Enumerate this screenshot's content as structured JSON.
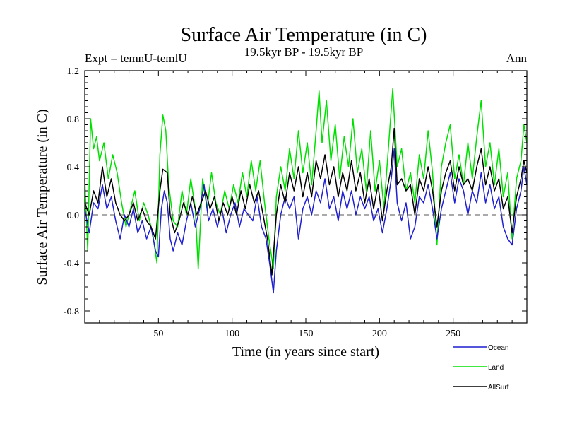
{
  "chart_data": {
    "type": "line",
    "title": "Surface Air Temperature (in C)",
    "subtitle": "19.5kyr BP - 19.5kyr BP",
    "expt_label": "Expt = temnU-temlU",
    "season_label": "Ann",
    "xlabel": "Time (in years since start)",
    "ylabel": "Surface Air Temperature (in C)",
    "xlim": [
      0,
      300
    ],
    "ylim": [
      -0.9,
      1.2
    ],
    "xticks": [
      50,
      100,
      150,
      200,
      250
    ],
    "yticks": [
      -0.8,
      -0.4,
      0.0,
      0.4,
      0.8,
      1.2
    ],
    "ytick_labels": [
      "-0.8",
      "-0.4",
      "0.0",
      "0.4",
      "0.8",
      "1.2"
    ],
    "reference_line": 0.0,
    "series": [
      {
        "name": "Ocean",
        "color": "#1f1fd0",
        "points": [
          [
            0,
            0.05
          ],
          [
            3,
            -0.15
          ],
          [
            6,
            0.1
          ],
          [
            9,
            0.05
          ],
          [
            12,
            0.25
          ],
          [
            15,
            0.05
          ],
          [
            18,
            0.15
          ],
          [
            21,
            -0.05
          ],
          [
            24,
            -0.2
          ],
          [
            27,
            0.0
          ],
          [
            30,
            -0.1
          ],
          [
            33,
            0.05
          ],
          [
            36,
            -0.15
          ],
          [
            39,
            -0.05
          ],
          [
            42,
            -0.2
          ],
          [
            45,
            -0.1
          ],
          [
            48,
            -0.3
          ],
          [
            50,
            -0.35
          ],
          [
            52,
            0.05
          ],
          [
            54,
            0.2
          ],
          [
            56,
            0.1
          ],
          [
            58,
            -0.2
          ],
          [
            60,
            -0.3
          ],
          [
            63,
            -0.15
          ],
          [
            66,
            -0.25
          ],
          [
            69,
            -0.05
          ],
          [
            72,
            0.1
          ],
          [
            75,
            -0.1
          ],
          [
            78,
            0.05
          ],
          [
            81,
            0.25
          ],
          [
            84,
            -0.05
          ],
          [
            87,
            0.05
          ],
          [
            90,
            -0.1
          ],
          [
            93,
            0.05
          ],
          [
            96,
            -0.15
          ],
          [
            99,
            0.0
          ],
          [
            102,
            0.1
          ],
          [
            105,
            -0.1
          ],
          [
            108,
            0.05
          ],
          [
            111,
            0.0
          ],
          [
            114,
            -0.05
          ],
          [
            117,
            0.15
          ],
          [
            120,
            -0.1
          ],
          [
            123,
            -0.2
          ],
          [
            126,
            -0.45
          ],
          [
            128,
            -0.65
          ],
          [
            130,
            -0.3
          ],
          [
            133,
            0.0
          ],
          [
            136,
            0.15
          ],
          [
            139,
            0.05
          ],
          [
            142,
            0.15
          ],
          [
            145,
            -0.2
          ],
          [
            148,
            0.05
          ],
          [
            151,
            0.15
          ],
          [
            154,
            0.0
          ],
          [
            157,
            0.2
          ],
          [
            160,
            0.1
          ],
          [
            163,
            0.3
          ],
          [
            166,
            0.05
          ],
          [
            169,
            0.15
          ],
          [
            172,
            -0.05
          ],
          [
            175,
            0.2
          ],
          [
            178,
            0.05
          ],
          [
            181,
            0.2
          ],
          [
            184,
            0.0
          ],
          [
            187,
            0.15
          ],
          [
            190,
            0.05
          ],
          [
            193,
            0.15
          ],
          [
            196,
            -0.05
          ],
          [
            199,
            0.05
          ],
          [
            202,
            -0.15
          ],
          [
            205,
            0.05
          ],
          [
            208,
            0.3
          ],
          [
            210,
            0.55
          ],
          [
            212,
            0.1
          ],
          [
            215,
            -0.05
          ],
          [
            218,
            0.1
          ],
          [
            221,
            -0.2
          ],
          [
            224,
            -0.1
          ],
          [
            227,
            0.15
          ],
          [
            230,
            0.1
          ],
          [
            233,
            0.25
          ],
          [
            236,
            0.05
          ],
          [
            239,
            -0.2
          ],
          [
            242,
            0.05
          ],
          [
            245,
            0.2
          ],
          [
            248,
            0.35
          ],
          [
            251,
            0.1
          ],
          [
            254,
            0.3
          ],
          [
            257,
            0.2
          ],
          [
            260,
            0.0
          ],
          [
            263,
            0.2
          ],
          [
            266,
            0.1
          ],
          [
            269,
            0.35
          ],
          [
            272,
            0.1
          ],
          [
            275,
            0.25
          ],
          [
            278,
            0.05
          ],
          [
            281,
            0.15
          ],
          [
            284,
            -0.1
          ],
          [
            287,
            -0.2
          ],
          [
            290,
            -0.25
          ],
          [
            293,
            0.05
          ],
          [
            296,
            0.2
          ],
          [
            298,
            0.4
          ],
          [
            300,
            0.25
          ]
        ]
      },
      {
        "name": "Land",
        "color": "#00e000",
        "points": [
          [
            0,
            0.3
          ],
          [
            2,
            -0.3
          ],
          [
            4,
            0.8
          ],
          [
            6,
            0.55
          ],
          [
            8,
            0.65
          ],
          [
            10,
            0.45
          ],
          [
            13,
            0.6
          ],
          [
            16,
            0.3
          ],
          [
            19,
            0.5
          ],
          [
            22,
            0.35
          ],
          [
            25,
            0.1
          ],
          [
            28,
            -0.1
          ],
          [
            31,
            0.05
          ],
          [
            34,
            0.2
          ],
          [
            37,
            -0.05
          ],
          [
            40,
            0.1
          ],
          [
            43,
            0.0
          ],
          [
            46,
            -0.15
          ],
          [
            49,
            -0.4
          ],
          [
            51,
            0.5
          ],
          [
            53,
            0.83
          ],
          [
            55,
            0.7
          ],
          [
            57,
            0.25
          ],
          [
            60,
            -0.05
          ],
          [
            63,
            -0.1
          ],
          [
            66,
            0.2
          ],
          [
            69,
            0.0
          ],
          [
            72,
            0.3
          ],
          [
            75,
            0.05
          ],
          [
            77,
            -0.45
          ],
          [
            80,
            0.3
          ],
          [
            83,
            0.05
          ],
          [
            86,
            0.35
          ],
          [
            89,
            0.1
          ],
          [
            92,
            0.0
          ],
          [
            95,
            0.2
          ],
          [
            98,
            0.05
          ],
          [
            101,
            0.25
          ],
          [
            104,
            0.1
          ],
          [
            107,
            0.35
          ],
          [
            110,
            0.15
          ],
          [
            113,
            0.45
          ],
          [
            116,
            0.2
          ],
          [
            119,
            0.45
          ],
          [
            122,
            0.1
          ],
          [
            125,
            -0.2
          ],
          [
            128,
            -0.45
          ],
          [
            130,
            0.15
          ],
          [
            133,
            0.4
          ],
          [
            136,
            0.2
          ],
          [
            139,
            0.55
          ],
          [
            142,
            0.3
          ],
          [
            145,
            0.7
          ],
          [
            148,
            0.35
          ],
          [
            151,
            0.6
          ],
          [
            154,
            0.25
          ],
          [
            157,
            0.7
          ],
          [
            159,
            1.03
          ],
          [
            161,
            0.6
          ],
          [
            164,
            0.95
          ],
          [
            167,
            0.45
          ],
          [
            170,
            0.75
          ],
          [
            173,
            0.3
          ],
          [
            176,
            0.65
          ],
          [
            179,
            0.4
          ],
          [
            182,
            0.8
          ],
          [
            185,
            0.35
          ],
          [
            188,
            0.55
          ],
          [
            191,
            0.2
          ],
          [
            194,
            0.7
          ],
          [
            197,
            0.2
          ],
          [
            200,
            0.45
          ],
          [
            203,
            0.05
          ],
          [
            206,
            0.55
          ],
          [
            209,
            1.05
          ],
          [
            212,
            0.4
          ],
          [
            215,
            0.55
          ],
          [
            218,
            0.2
          ],
          [
            221,
            0.35
          ],
          [
            224,
            0.1
          ],
          [
            227,
            0.5
          ],
          [
            230,
            0.3
          ],
          [
            233,
            0.7
          ],
          [
            236,
            0.35
          ],
          [
            239,
            -0.25
          ],
          [
            242,
            0.4
          ],
          [
            245,
            0.6
          ],
          [
            248,
            0.75
          ],
          [
            251,
            0.3
          ],
          [
            254,
            0.5
          ],
          [
            257,
            0.25
          ],
          [
            260,
            0.6
          ],
          [
            263,
            0.3
          ],
          [
            266,
            0.65
          ],
          [
            269,
            0.95
          ],
          [
            272,
            0.4
          ],
          [
            275,
            0.6
          ],
          [
            278,
            0.25
          ],
          [
            281,
            0.55
          ],
          [
            284,
            0.15
          ],
          [
            287,
            0.35
          ],
          [
            290,
            -0.2
          ],
          [
            293,
            0.3
          ],
          [
            296,
            0.45
          ],
          [
            298,
            0.75
          ],
          [
            300,
            0.6
          ]
        ]
      },
      {
        "name": "AllSurf",
        "color": "#000000",
        "points": [
          [
            0,
            0.1
          ],
          [
            3,
            0.0
          ],
          [
            6,
            0.2
          ],
          [
            9,
            0.1
          ],
          [
            12,
            0.4
          ],
          [
            15,
            0.15
          ],
          [
            18,
            0.3
          ],
          [
            21,
            0.1
          ],
          [
            24,
            0.0
          ],
          [
            27,
            -0.05
          ],
          [
            30,
            0.0
          ],
          [
            33,
            0.1
          ],
          [
            36,
            -0.05
          ],
          [
            39,
            0.05
          ],
          [
            42,
            -0.05
          ],
          [
            45,
            -0.1
          ],
          [
            48,
            -0.2
          ],
          [
            51,
            0.2
          ],
          [
            53,
            0.38
          ],
          [
            56,
            0.35
          ],
          [
            58,
            0.0
          ],
          [
            61,
            -0.15
          ],
          [
            64,
            -0.05
          ],
          [
            67,
            0.1
          ],
          [
            70,
            0.0
          ],
          [
            73,
            0.15
          ],
          [
            76,
            0.0
          ],
          [
            79,
            0.1
          ],
          [
            82,
            0.2
          ],
          [
            85,
            0.05
          ],
          [
            88,
            0.15
          ],
          [
            91,
            -0.05
          ],
          [
            94,
            0.1
          ],
          [
            97,
            0.0
          ],
          [
            100,
            0.15
          ],
          [
            103,
            0.0
          ],
          [
            106,
            0.2
          ],
          [
            109,
            0.05
          ],
          [
            112,
            0.25
          ],
          [
            115,
            0.1
          ],
          [
            118,
            0.2
          ],
          [
            121,
            0.0
          ],
          [
            124,
            -0.2
          ],
          [
            127,
            -0.5
          ],
          [
            130,
            0.0
          ],
          [
            133,
            0.25
          ],
          [
            136,
            0.1
          ],
          [
            139,
            0.35
          ],
          [
            142,
            0.2
          ],
          [
            145,
            0.4
          ],
          [
            148,
            0.15
          ],
          [
            151,
            0.35
          ],
          [
            154,
            0.15
          ],
          [
            157,
            0.45
          ],
          [
            160,
            0.3
          ],
          [
            163,
            0.5
          ],
          [
            166,
            0.25
          ],
          [
            169,
            0.4
          ],
          [
            172,
            0.15
          ],
          [
            175,
            0.35
          ],
          [
            178,
            0.2
          ],
          [
            181,
            0.45
          ],
          [
            184,
            0.2
          ],
          [
            187,
            0.35
          ],
          [
            190,
            0.1
          ],
          [
            193,
            0.3
          ],
          [
            196,
            0.05
          ],
          [
            199,
            0.25
          ],
          [
            202,
            -0.05
          ],
          [
            205,
            0.2
          ],
          [
            208,
            0.4
          ],
          [
            210,
            0.72
          ],
          [
            212,
            0.25
          ],
          [
            215,
            0.3
          ],
          [
            218,
            0.2
          ],
          [
            221,
            0.25
          ],
          [
            224,
            0.0
          ],
          [
            227,
            0.3
          ],
          [
            230,
            0.2
          ],
          [
            233,
            0.4
          ],
          [
            236,
            0.2
          ],
          [
            239,
            -0.1
          ],
          [
            242,
            0.2
          ],
          [
            245,
            0.35
          ],
          [
            248,
            0.45
          ],
          [
            251,
            0.2
          ],
          [
            254,
            0.4
          ],
          [
            257,
            0.25
          ],
          [
            260,
            0.3
          ],
          [
            263,
            0.2
          ],
          [
            266,
            0.4
          ],
          [
            269,
            0.55
          ],
          [
            272,
            0.25
          ],
          [
            275,
            0.4
          ],
          [
            278,
            0.2
          ],
          [
            281,
            0.3
          ],
          [
            284,
            0.05
          ],
          [
            287,
            0.15
          ],
          [
            290,
            -0.15
          ],
          [
            293,
            0.15
          ],
          [
            296,
            0.3
          ],
          [
            298,
            0.45
          ],
          [
            300,
            0.35
          ]
        ]
      }
    ],
    "legend": [
      {
        "name": "Ocean",
        "color": "#1f1fd0"
      },
      {
        "name": "Land",
        "color": "#00e000"
      },
      {
        "name": "AllSurf",
        "color": "#000000"
      }
    ]
  }
}
